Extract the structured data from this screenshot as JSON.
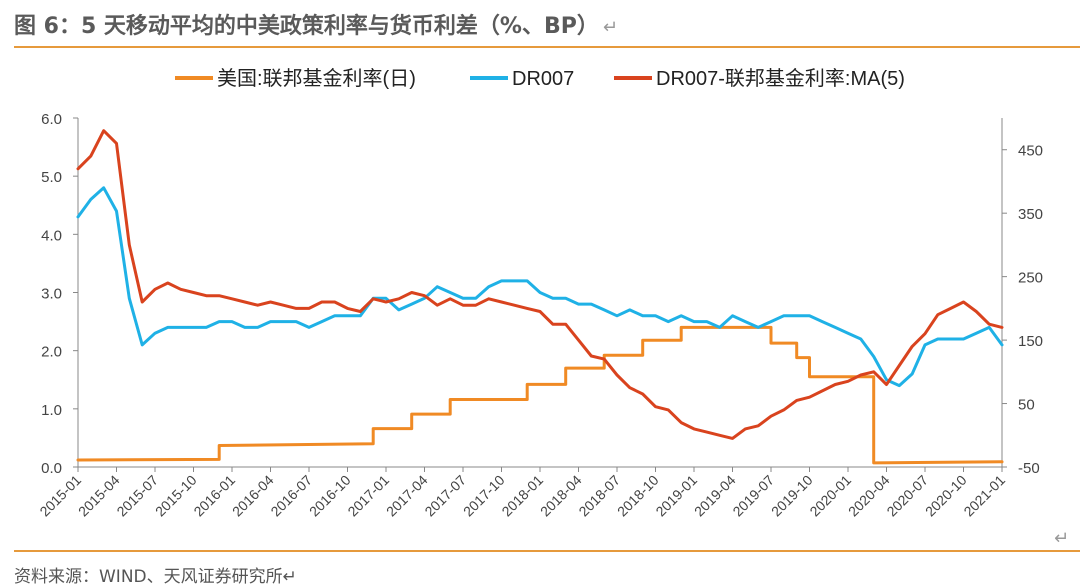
{
  "header": {
    "title": "图 6：5 天移动平均的中美政策利率与货币利差（%、BP）",
    "return_mark": "↵"
  },
  "footer": {
    "source": "资料来源：WIND、天风证券研究所↵",
    "corner_mark": "↵"
  },
  "colors": {
    "accent_rule": "#e69a3c",
    "fed": "#f08a24",
    "dr007": "#1fb1e6",
    "spread": "#d9431e"
  },
  "chart_data": {
    "type": "line",
    "title": "",
    "legend_position": "top",
    "grid": false,
    "x_ticks": [
      "2015-01",
      "2015-04",
      "2015-07",
      "2015-10",
      "2016-01",
      "2016-04",
      "2016-07",
      "2016-10",
      "2017-01",
      "2017-04",
      "2017-07",
      "2017-10",
      "2018-01",
      "2018-04",
      "2018-07",
      "2018-10",
      "2019-01",
      "2019-04",
      "2019-07",
      "2019-10",
      "2020-01",
      "2020-04",
      "2020-07",
      "2020-10",
      "2021-01"
    ],
    "y_left": {
      "ylim": [
        0,
        6
      ],
      "ticks": [
        "0.0",
        "1.0",
        "2.0",
        "3.0",
        "4.0",
        "5.0",
        "6.0"
      ]
    },
    "y_right": {
      "ylim": [
        -50,
        500
      ],
      "ticks": [
        "-50",
        "50",
        "150",
        "250",
        "350",
        "450"
      ]
    },
    "series": [
      {
        "name": "美国:联邦基金利率(日)",
        "axis": "left",
        "color": "#f08a24",
        "x": [
          "2015-01",
          "2015-12",
          "2015-12",
          "2016-12",
          "2016-12",
          "2017-03",
          "2017-03",
          "2017-06",
          "2017-06",
          "2017-12",
          "2017-12",
          "2018-03",
          "2018-03",
          "2018-06",
          "2018-06",
          "2018-09",
          "2018-09",
          "2018-12",
          "2018-12",
          "2019-07",
          "2019-07",
          "2019-09",
          "2019-09",
          "2019-10",
          "2019-10",
          "2020-03",
          "2020-03",
          "2020-03",
          "2020-03",
          "2021-01"
        ],
        "values": [
          0.12,
          0.13,
          0.37,
          0.4,
          0.66,
          0.66,
          0.91,
          0.91,
          1.16,
          1.16,
          1.42,
          1.42,
          1.7,
          1.7,
          1.92,
          1.92,
          2.18,
          2.18,
          2.4,
          2.4,
          2.13,
          2.13,
          1.88,
          1.88,
          1.55,
          1.55,
          1.1,
          1.1,
          0.07,
          0.09
        ]
      },
      {
        "name": "DR007",
        "axis": "left",
        "color": "#1fb1e6",
        "x": [
          "2015-01",
          "2015-02",
          "2015-03",
          "2015-04",
          "2015-05",
          "2015-06",
          "2015-07",
          "2015-08",
          "2015-09",
          "2015-10",
          "2015-11",
          "2015-12",
          "2016-01",
          "2016-02",
          "2016-03",
          "2016-04",
          "2016-05",
          "2016-06",
          "2016-07",
          "2016-08",
          "2016-09",
          "2016-10",
          "2016-11",
          "2016-12",
          "2017-01",
          "2017-02",
          "2017-03",
          "2017-04",
          "2017-05",
          "2017-06",
          "2017-07",
          "2017-08",
          "2017-09",
          "2017-10",
          "2017-11",
          "2017-12",
          "2018-01",
          "2018-02",
          "2018-03",
          "2018-04",
          "2018-05",
          "2018-06",
          "2018-07",
          "2018-08",
          "2018-09",
          "2018-10",
          "2018-11",
          "2018-12",
          "2019-01",
          "2019-02",
          "2019-03",
          "2019-04",
          "2019-05",
          "2019-06",
          "2019-07",
          "2019-08",
          "2019-09",
          "2019-10",
          "2019-11",
          "2019-12",
          "2020-01",
          "2020-02",
          "2020-03",
          "2020-04",
          "2020-05",
          "2020-06",
          "2020-07",
          "2020-08",
          "2020-09",
          "2020-10",
          "2020-11",
          "2020-12",
          "2021-01"
        ],
        "values": [
          4.3,
          4.6,
          4.8,
          4.4,
          2.9,
          2.1,
          2.3,
          2.4,
          2.4,
          2.4,
          2.4,
          2.5,
          2.5,
          2.4,
          2.4,
          2.5,
          2.5,
          2.5,
          2.4,
          2.5,
          2.6,
          2.6,
          2.6,
          2.9,
          2.9,
          2.7,
          2.8,
          2.9,
          3.1,
          3.0,
          2.9,
          2.9,
          3.1,
          3.2,
          3.2,
          3.2,
          3.0,
          2.9,
          2.9,
          2.8,
          2.8,
          2.7,
          2.6,
          2.7,
          2.6,
          2.6,
          2.5,
          2.6,
          2.5,
          2.5,
          2.4,
          2.6,
          2.5,
          2.4,
          2.5,
          2.6,
          2.6,
          2.6,
          2.5,
          2.4,
          2.3,
          2.2,
          1.9,
          1.5,
          1.4,
          1.6,
          2.1,
          2.2,
          2.2,
          2.2,
          2.3,
          2.4,
          2.1
        ]
      },
      {
        "name": "DR007-联邦基金利率:MA(5)",
        "axis": "right",
        "color": "#d9431e",
        "x": [
          "2015-01",
          "2015-02",
          "2015-03",
          "2015-04",
          "2015-05",
          "2015-06",
          "2015-07",
          "2015-08",
          "2015-09",
          "2015-10",
          "2015-11",
          "2015-12",
          "2016-01",
          "2016-02",
          "2016-03",
          "2016-04",
          "2016-05",
          "2016-06",
          "2016-07",
          "2016-08",
          "2016-09",
          "2016-10",
          "2016-11",
          "2016-12",
          "2017-01",
          "2017-02",
          "2017-03",
          "2017-04",
          "2017-05",
          "2017-06",
          "2017-07",
          "2017-08",
          "2017-09",
          "2017-10",
          "2017-11",
          "2017-12",
          "2018-01",
          "2018-02",
          "2018-03",
          "2018-04",
          "2018-05",
          "2018-06",
          "2018-07",
          "2018-08",
          "2018-09",
          "2018-10",
          "2018-11",
          "2018-12",
          "2019-01",
          "2019-02",
          "2019-03",
          "2019-04",
          "2019-05",
          "2019-06",
          "2019-07",
          "2019-08",
          "2019-09",
          "2019-10",
          "2019-11",
          "2019-12",
          "2020-01",
          "2020-02",
          "2020-03",
          "2020-04",
          "2020-05",
          "2020-06",
          "2020-07",
          "2020-08",
          "2020-09",
          "2020-10",
          "2020-11",
          "2020-12",
          "2021-01"
        ],
        "values": [
          420,
          440,
          480,
          460,
          300,
          210,
          230,
          240,
          230,
          225,
          220,
          220,
          215,
          210,
          205,
          210,
          205,
          200,
          200,
          210,
          210,
          200,
          195,
          215,
          210,
          215,
          225,
          220,
          205,
          215,
          205,
          205,
          215,
          210,
          205,
          200,
          195,
          175,
          175,
          150,
          125,
          120,
          95,
          75,
          65,
          45,
          40,
          20,
          10,
          5,
          0,
          -5,
          10,
          15,
          30,
          40,
          55,
          60,
          70,
          80,
          85,
          95,
          100,
          80,
          110,
          140,
          160,
          190,
          200,
          210,
          195,
          175,
          170
        ]
      }
    ]
  }
}
